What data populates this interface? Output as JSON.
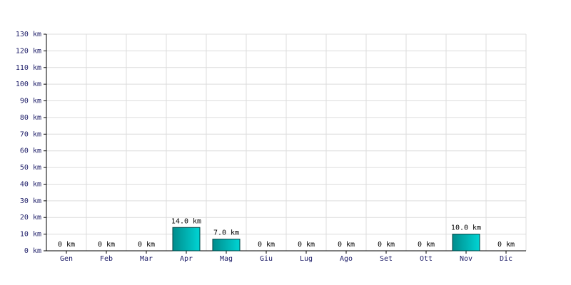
{
  "chart_data": {
    "type": "bar",
    "categories": [
      "Gen",
      "Feb",
      "Mar",
      "Apr",
      "Mag",
      "Giu",
      "Lug",
      "Ago",
      "Set",
      "Ott",
      "Nov",
      "Dic"
    ],
    "values": [
      0,
      0,
      0,
      14,
      7,
      0,
      0,
      0,
      0,
      0,
      10,
      0
    ],
    "value_labels": [
      "0 km",
      "0 km",
      "0 km",
      "14.0 km",
      "7.0 km",
      "0 km",
      "0 km",
      "0 km",
      "0 km",
      "0 km",
      "10.0 km",
      "0 km"
    ],
    "color": "#00d4d4",
    "ylim": [
      0,
      130
    ],
    "yticks": [
      {
        "value": 0,
        "label": "0 km"
      },
      {
        "value": 10,
        "label": "10 km"
      },
      {
        "value": 20,
        "label": "20 km"
      },
      {
        "value": 30,
        "label": "30 km"
      },
      {
        "value": 40,
        "label": "40 km"
      },
      {
        "value": 50,
        "label": "50 km"
      },
      {
        "value": 60,
        "label": "60 km"
      },
      {
        "value": 70,
        "label": "70 km"
      },
      {
        "value": 80,
        "label": "80 km"
      },
      {
        "value": 90,
        "label": "90 km"
      },
      {
        "value": 100,
        "label": "100 km"
      },
      {
        "value": 110,
        "label": "110 km"
      },
      {
        "value": 120,
        "label": "120 km"
      },
      {
        "value": 130,
        "label": "130 km"
      }
    ],
    "grid": true
  }
}
